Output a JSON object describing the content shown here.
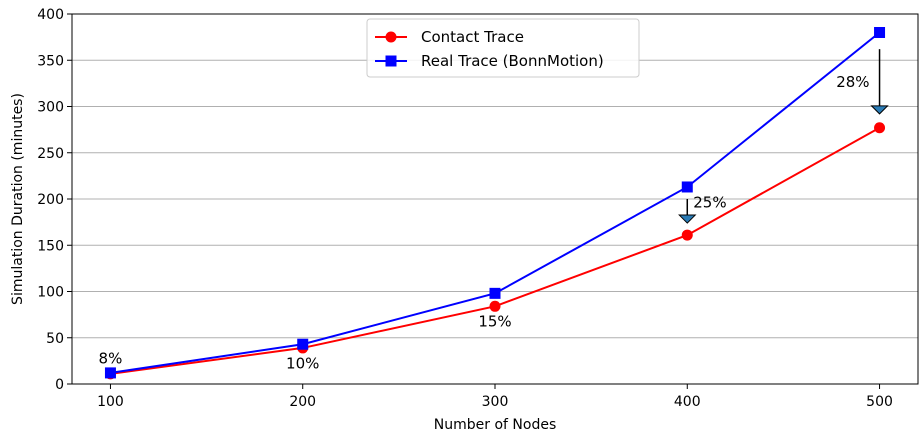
{
  "chart_data": {
    "type": "line",
    "title": "",
    "xlabel": "Number of Nodes",
    "ylabel": "Simulation Duration (minutes)",
    "x": [
      100,
      200,
      300,
      400,
      500
    ],
    "xlim": [
      80,
      520
    ],
    "ylim": [
      0,
      400
    ],
    "yticks": [
      0,
      50,
      100,
      150,
      200,
      250,
      300,
      350,
      400
    ],
    "xticks": [
      100,
      200,
      300,
      400,
      500
    ],
    "grid": "horizontal",
    "legend_position": "top-center",
    "series": [
      {
        "name": "Contact Trace",
        "values": [
          11,
          39,
          84,
          161,
          277
        ],
        "color": "#ff0000",
        "marker": "circle"
      },
      {
        "name": "Real Trace (BonnMotion)",
        "values": [
          12,
          43,
          98,
          213,
          380
        ],
        "color": "#0000ff",
        "marker": "square"
      }
    ],
    "annotations": [
      {
        "text": "8%",
        "x": 100,
        "y": 22
      },
      {
        "text": "10%",
        "x": 200,
        "y": 17
      },
      {
        "text": "15%",
        "x": 300,
        "y": 62
      },
      {
        "text": "25%",
        "x": 400,
        "y": 191
      },
      {
        "text": "28%",
        "x": 500,
        "y": 321
      }
    ],
    "arrows": [
      {
        "x": 400,
        "from": 200,
        "to": 174
      },
      {
        "x": 500,
        "from": 362,
        "to": 292
      }
    ]
  }
}
